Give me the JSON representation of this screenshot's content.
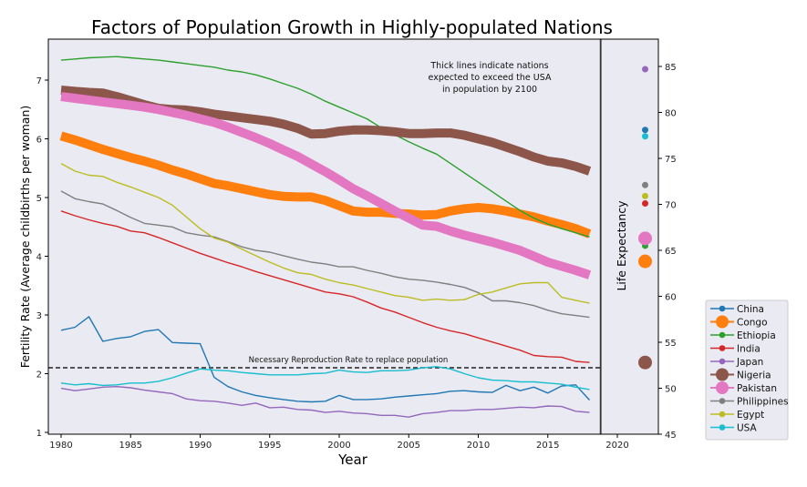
{
  "chart_data": {
    "type": "line",
    "title": "Factors of Population Growth in Highly-populated Nations",
    "xlabel": "Year",
    "ylabel": "Fertility Rate (Average childbirths per woman)",
    "y2label": "Life Expectancy",
    "xlim": [
      1979,
      2023
    ],
    "ylim": [
      1,
      7.6
    ],
    "y2lim": [
      45,
      88
    ],
    "x_ticks": [
      1980,
      1985,
      1990,
      1995,
      2000,
      2005,
      2010,
      2015,
      2020
    ],
    "y_ticks": [
      1,
      2,
      3,
      4,
      5,
      6,
      7
    ],
    "y2_ticks": [
      45,
      50,
      55,
      60,
      65,
      70,
      75,
      80,
      85
    ],
    "divider_x": 2018.8,
    "life_expectancy_x": 2022,
    "grid": false,
    "legend_position": "outside-bottom-right",
    "annotations": {
      "thick_note": [
        "Thick lines indicate nations",
        "expected to exceed the USA",
        "in population by 2100"
      ],
      "replacement_label": "Necessary Reproduction Rate to replace population",
      "replacement_rate": 2.1
    },
    "x": [
      1980,
      1981,
      1982,
      1983,
      1984,
      1985,
      1986,
      1987,
      1988,
      1989,
      1990,
      1991,
      1992,
      1993,
      1994,
      1995,
      1996,
      1997,
      1998,
      1999,
      2000,
      2001,
      2002,
      2003,
      2004,
      2005,
      2006,
      2007,
      2008,
      2009,
      2010,
      2011,
      2012,
      2013,
      2014,
      2015,
      2016,
      2017,
      2018
    ],
    "series": [
      {
        "name": "China",
        "color": "#1f77b4",
        "thick": false,
        "life_expectancy": 78.1,
        "values": [
          2.74,
          2.79,
          2.97,
          2.55,
          2.6,
          2.63,
          2.72,
          2.75,
          2.53,
          2.52,
          2.51,
          1.94,
          1.78,
          1.69,
          1.63,
          1.59,
          1.56,
          1.53,
          1.52,
          1.53,
          1.63,
          1.56,
          1.56,
          1.57,
          1.6,
          1.62,
          1.64,
          1.66,
          1.7,
          1.71,
          1.69,
          1.68,
          1.8,
          1.71,
          1.77,
          1.67,
          1.79,
          1.81,
          1.55
        ]
      },
      {
        "name": "Congo",
        "color": "#ff7f0e",
        "thick": true,
        "life_expectancy": 63.8,
        "values": [
          6.05,
          5.98,
          5.9,
          5.82,
          5.75,
          5.68,
          5.62,
          5.55,
          5.47,
          5.4,
          5.32,
          5.24,
          5.2,
          5.15,
          5.1,
          5.05,
          5.02,
          5.01,
          5.01,
          4.95,
          4.86,
          4.77,
          4.75,
          4.75,
          4.73,
          4.72,
          4.7,
          4.71,
          4.77,
          4.81,
          4.83,
          4.81,
          4.77,
          4.72,
          4.67,
          4.6,
          4.54,
          4.47,
          4.38
        ]
      },
      {
        "name": "Ethiopia",
        "color": "#2ca02c",
        "thick": false,
        "life_expectancy": 65.5,
        "values": [
          7.34,
          7.36,
          7.38,
          7.39,
          7.4,
          7.38,
          7.36,
          7.34,
          7.31,
          7.28,
          7.25,
          7.22,
          7.17,
          7.14,
          7.09,
          7.02,
          6.94,
          6.86,
          6.76,
          6.64,
          6.54,
          6.44,
          6.34,
          6.19,
          6.07,
          5.95,
          5.84,
          5.74,
          5.58,
          5.42,
          5.26,
          5.1,
          4.94,
          4.78,
          4.65,
          4.55,
          4.47,
          4.4,
          4.33
        ]
      },
      {
        "name": "India",
        "color": "#d62728",
        "thick": false,
        "life_expectancy": 70.1,
        "values": [
          4.77,
          4.69,
          4.62,
          4.56,
          4.51,
          4.43,
          4.4,
          4.32,
          4.23,
          4.14,
          4.05,
          3.97,
          3.89,
          3.82,
          3.74,
          3.67,
          3.6,
          3.53,
          3.46,
          3.39,
          3.36,
          3.31,
          3.22,
          3.12,
          3.05,
          2.96,
          2.87,
          2.79,
          2.73,
          2.68,
          2.61,
          2.54,
          2.47,
          2.4,
          2.31,
          2.29,
          2.28,
          2.21,
          2.19
        ]
      },
      {
        "name": "Japan",
        "color": "#9467bd",
        "thick": false,
        "life_expectancy": 84.7,
        "values": [
          1.75,
          1.71,
          1.74,
          1.77,
          1.78,
          1.76,
          1.72,
          1.69,
          1.66,
          1.57,
          1.54,
          1.53,
          1.5,
          1.46,
          1.5,
          1.42,
          1.43,
          1.39,
          1.38,
          1.34,
          1.36,
          1.33,
          1.32,
          1.29,
          1.29,
          1.26,
          1.32,
          1.34,
          1.37,
          1.37,
          1.39,
          1.39,
          1.41,
          1.43,
          1.42,
          1.45,
          1.44,
          1.36,
          1.34
        ]
      },
      {
        "name": "Nigeria",
        "color": "#8c564b",
        "thick": true,
        "life_expectancy": 52.8,
        "values": [
          6.83,
          6.81,
          6.79,
          6.78,
          6.72,
          6.65,
          6.58,
          6.52,
          6.5,
          6.49,
          6.46,
          6.42,
          6.39,
          6.36,
          6.33,
          6.3,
          6.25,
          6.18,
          6.08,
          6.09,
          6.13,
          6.15,
          6.15,
          6.14,
          6.12,
          6.09,
          6.09,
          6.1,
          6.1,
          6.06,
          6.0,
          5.94,
          5.86,
          5.78,
          5.69,
          5.62,
          5.59,
          5.53,
          5.45
        ]
      },
      {
        "name": "Pakistan",
        "color": "#e377c2",
        "thick": true,
        "life_expectancy": 66.3,
        "values": [
          6.72,
          6.69,
          6.66,
          6.63,
          6.6,
          6.57,
          6.54,
          6.5,
          6.45,
          6.4,
          6.34,
          6.28,
          6.2,
          6.11,
          6.02,
          5.92,
          5.81,
          5.7,
          5.57,
          5.44,
          5.3,
          5.15,
          5.03,
          4.9,
          4.77,
          4.65,
          4.53,
          4.51,
          4.43,
          4.36,
          4.3,
          4.24,
          4.17,
          4.1,
          4.0,
          3.9,
          3.83,
          3.76,
          3.68
        ]
      },
      {
        "name": "Philippines",
        "color": "#7f7f7f",
        "thick": false,
        "life_expectancy": 72.1,
        "values": [
          5.11,
          4.98,
          4.93,
          4.89,
          4.78,
          4.66,
          4.56,
          4.53,
          4.5,
          4.4,
          4.36,
          4.33,
          4.25,
          4.16,
          4.1,
          4.07,
          4.01,
          3.95,
          3.9,
          3.87,
          3.82,
          3.82,
          3.76,
          3.71,
          3.65,
          3.61,
          3.59,
          3.56,
          3.52,
          3.47,
          3.38,
          3.24,
          3.24,
          3.21,
          3.16,
          3.08,
          3.02,
          2.99,
          2.96
        ]
      },
      {
        "name": "Egypt",
        "color": "#bcbd22",
        "thick": false,
        "life_expectancy": 70.9,
        "values": [
          5.58,
          5.45,
          5.38,
          5.36,
          5.26,
          5.18,
          5.09,
          5.0,
          4.87,
          4.67,
          4.47,
          4.31,
          4.24,
          4.12,
          4.01,
          3.9,
          3.8,
          3.72,
          3.69,
          3.61,
          3.55,
          3.51,
          3.45,
          3.39,
          3.33,
          3.3,
          3.25,
          3.27,
          3.25,
          3.26,
          3.35,
          3.39,
          3.46,
          3.53,
          3.55,
          3.55,
          3.3,
          3.25,
          3.2
        ]
      },
      {
        "name": "USA",
        "color": "#17becf",
        "thick": false,
        "life_expectancy": 77.4,
        "values": [
          1.84,
          1.81,
          1.83,
          1.8,
          1.81,
          1.84,
          1.84,
          1.87,
          1.93,
          2.01,
          2.08,
          2.06,
          2.05,
          2.02,
          2.0,
          1.98,
          1.98,
          1.98,
          2.0,
          2.01,
          2.06,
          2.03,
          2.02,
          2.05,
          2.05,
          2.06,
          2.1,
          2.12,
          2.08,
          2.0,
          1.93,
          1.89,
          1.88,
          1.86,
          1.86,
          1.84,
          1.82,
          1.77,
          1.73
        ]
      }
    ]
  }
}
